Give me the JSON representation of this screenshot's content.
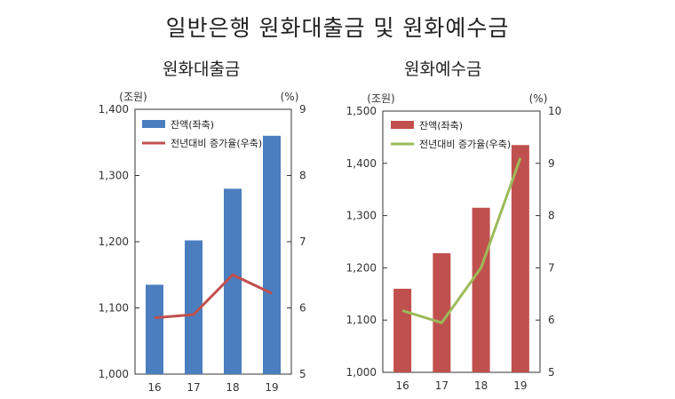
{
  "title": "일반은행 원화대출금 및 원화예수금",
  "chart_data": [
    {
      "type": "bar",
      "title": "원화대출금",
      "categories": [
        "16",
        "17",
        "18",
        "19"
      ],
      "left_unit": "(조원)",
      "right_unit": "(%)",
      "ylim": [
        1000,
        1400
      ],
      "yticks": [
        "1,000",
        "1,100",
        "1,200",
        "1,300",
        "1,400"
      ],
      "y2lim": [
        5,
        9
      ],
      "y2ticks": [
        "5",
        "6",
        "7",
        "8",
        "9"
      ],
      "bar_color": "#4a7ebf",
      "line_color": "#c0504d",
      "series": [
        {
          "name": "잔액(좌축)",
          "type": "bar",
          "values": [
            1135,
            1202,
            1280,
            1360
          ]
        },
        {
          "name": "전년대비 증가율(우축)",
          "type": "line",
          "values": [
            5.85,
            5.9,
            6.5,
            6.22
          ]
        }
      ]
    },
    {
      "type": "bar",
      "title": "원화예수금",
      "categories": [
        "16",
        "17",
        "18",
        "19"
      ],
      "left_unit": "(조원)",
      "right_unit": "(%)",
      "ylim": [
        1000,
        1500
      ],
      "yticks": [
        "1,000",
        "1,100",
        "1,200",
        "1,300",
        "1,400",
        "1,500"
      ],
      "y2lim": [
        5,
        10
      ],
      "y2ticks": [
        "5",
        "6",
        "7",
        "8",
        "9",
        "10"
      ],
      "bar_color": "#c0504d",
      "line_color": "#9bbb59",
      "series": [
        {
          "name": "잔액(좌축)",
          "type": "bar",
          "values": [
            1160,
            1228,
            1315,
            1435
          ]
        },
        {
          "name": "전년대비 증가율(우축)",
          "type": "line",
          "values": [
            6.18,
            5.95,
            7.0,
            9.1
          ]
        }
      ]
    }
  ]
}
